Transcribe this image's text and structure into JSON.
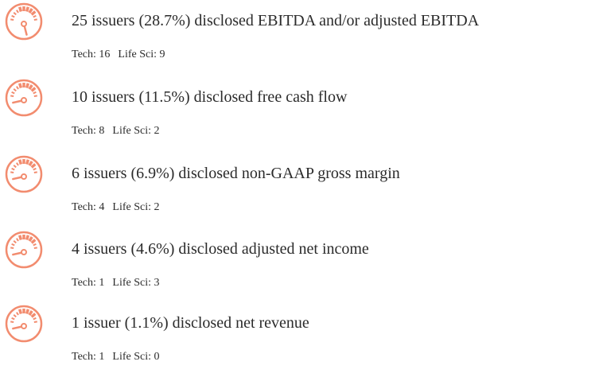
{
  "items": [
    {
      "text": "25 issuers (28.7%) disclosed EBITDA and/or adjusted EBITDA",
      "tech": "Tech: 16",
      "life": "Life Sci: 9"
    },
    {
      "text": "10 issuers (11.5%) disclosed free cash flow",
      "tech": "Tech: 8",
      "life": "Life Sci: 2"
    },
    {
      "text": "6 issuers (6.9%) disclosed non-GAAP gross margin",
      "tech": "Tech: 4",
      "life": "Life Sci: 2"
    },
    {
      "text": "4 issuers (4.6%) disclosed adjusted net income",
      "tech": "Tech: 1",
      "life": "Life Sci: 3"
    },
    {
      "text": "1 issuer (1.1%) disclosed net revenue",
      "tech": "Tech: 1",
      "life": "Life Sci: 0"
    }
  ]
}
